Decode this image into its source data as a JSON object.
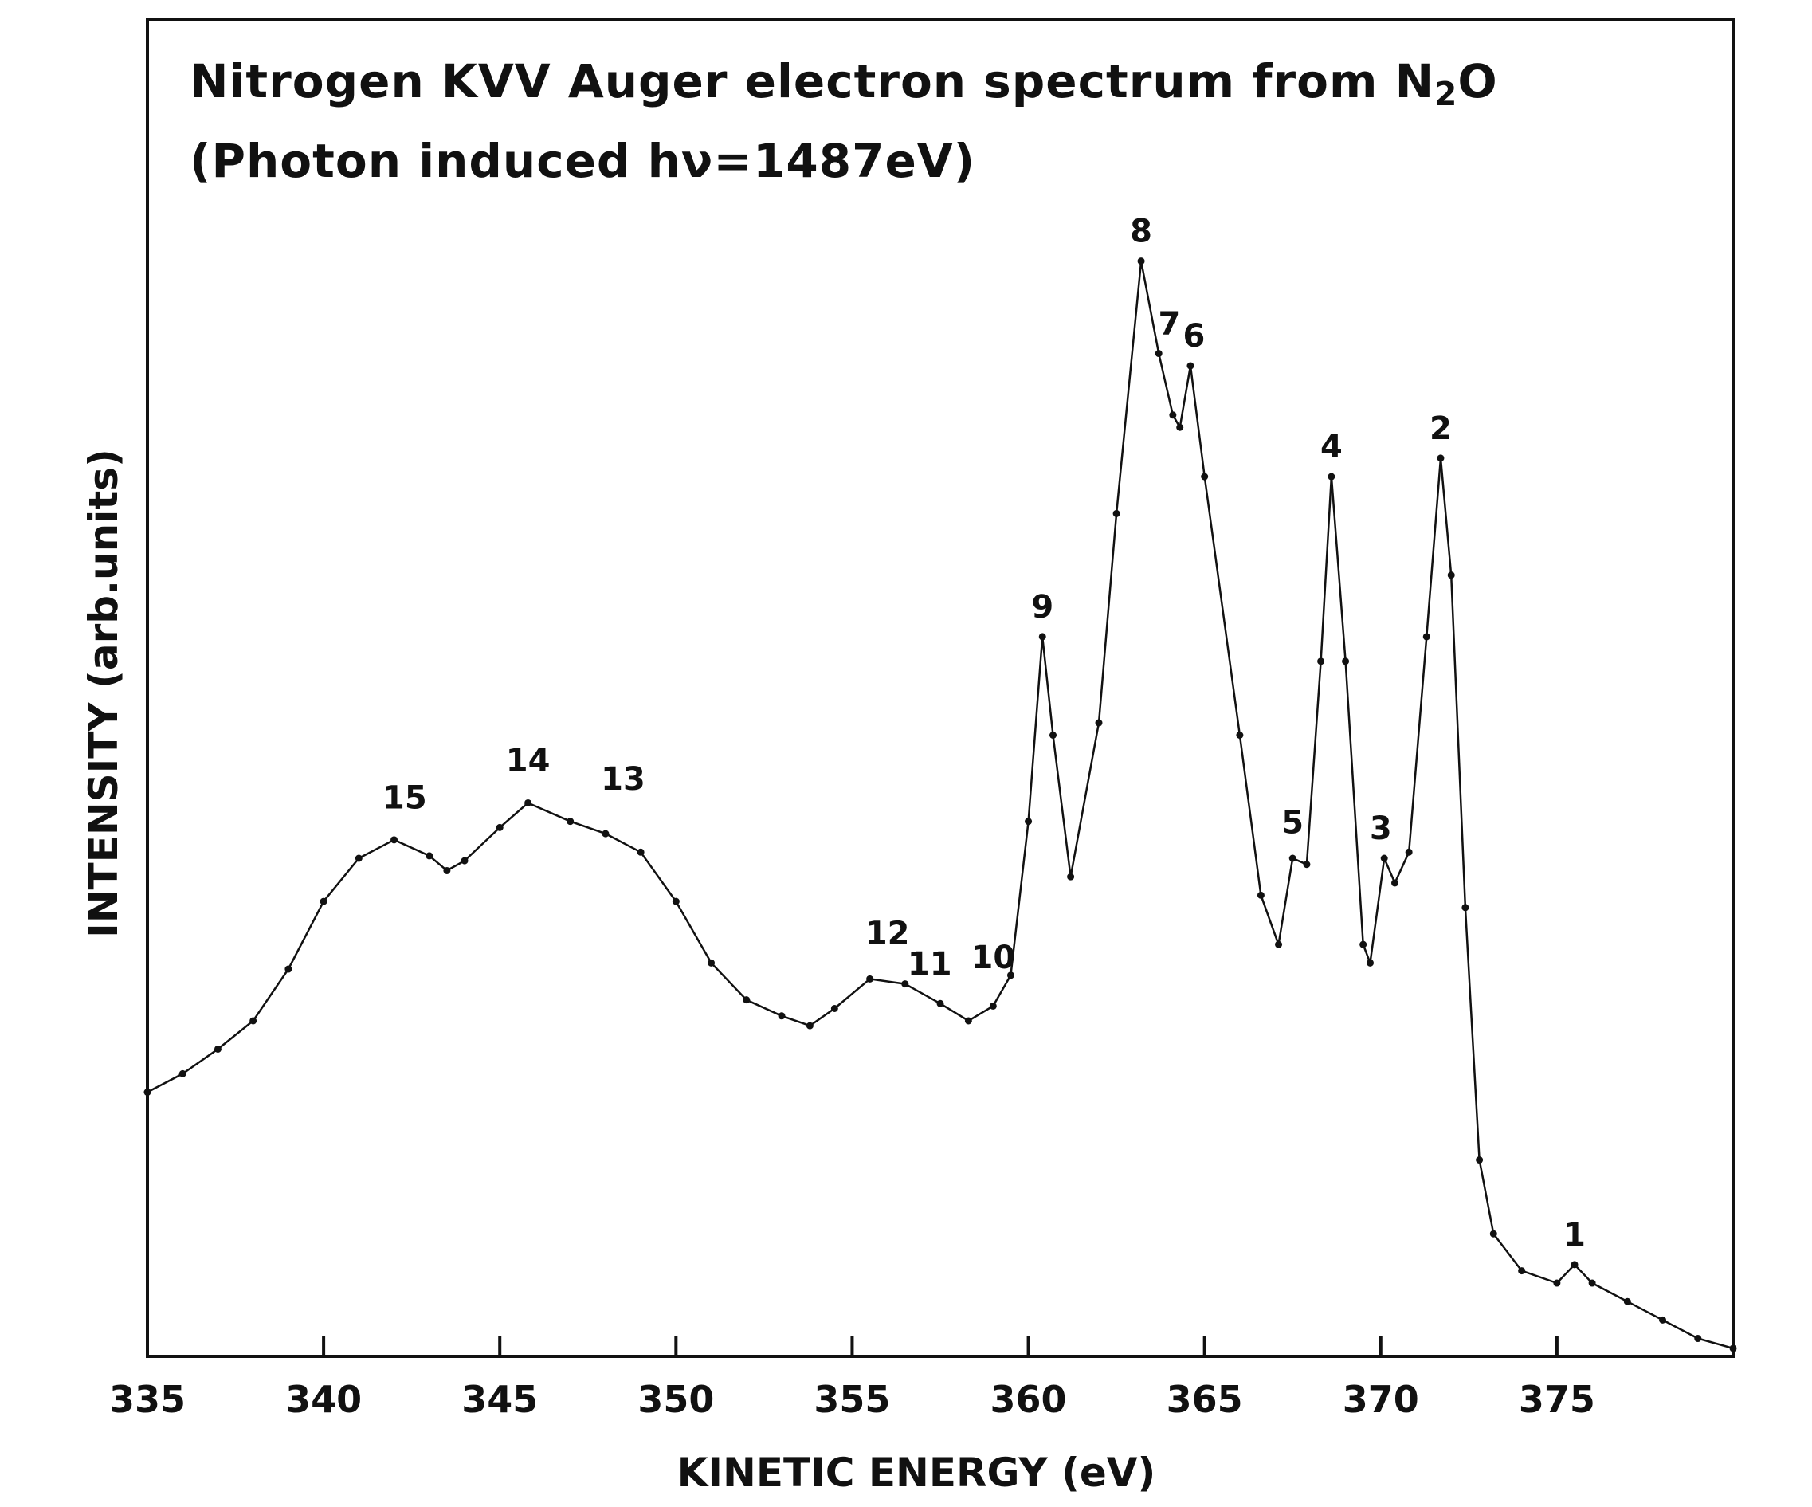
{
  "chart_data": {
    "type": "scatter",
    "title_line1": "Nitrogen KVV Auger electron spectrum from N",
    "title_line1_subscript": "2",
    "title_line1_end": "O",
    "title_line2": "(Photon induced hν=1487eV)",
    "xlabel": "KINETIC ENERGY (eV)",
    "ylabel": "INTENSITY (arb.units)",
    "xlim": [
      335,
      380
    ],
    "ylim": [
      0,
      100
    ],
    "x_ticks": [
      335,
      340,
      345,
      350,
      355,
      360,
      365,
      370,
      375
    ],
    "grid": false,
    "legend": "none",
    "colors": {
      "axes": "#111111",
      "data": "#111111",
      "background": "#ffffff"
    },
    "series": [
      {
        "values": [
          [
            335.0,
            21.0
          ],
          [
            336.0,
            22.5
          ],
          [
            337.0,
            24.5
          ],
          [
            338.0,
            26.8
          ],
          [
            339.0,
            31.0
          ],
          [
            340.0,
            36.5
          ],
          [
            341.0,
            40.0
          ],
          [
            342.0,
            41.5
          ],
          [
            343.0,
            40.2
          ],
          [
            343.5,
            39.0
          ],
          [
            344.0,
            39.8
          ],
          [
            345.0,
            42.5
          ],
          [
            345.8,
            44.5
          ],
          [
            347.0,
            43.0
          ],
          [
            348.0,
            42.0
          ],
          [
            349.0,
            40.5
          ],
          [
            350.0,
            36.5
          ],
          [
            351.0,
            31.5
          ],
          [
            352.0,
            28.5
          ],
          [
            353.0,
            27.2
          ],
          [
            353.8,
            26.4
          ],
          [
            354.5,
            27.8
          ],
          [
            355.5,
            30.2
          ],
          [
            356.5,
            29.8
          ],
          [
            357.5,
            28.2
          ],
          [
            358.3,
            26.8
          ],
          [
            359.0,
            28.0
          ],
          [
            359.5,
            30.5
          ],
          [
            360.0,
            43.0
          ],
          [
            360.4,
            58.0
          ],
          [
            360.7,
            50.0
          ],
          [
            361.2,
            38.5
          ],
          [
            362.0,
            51.0
          ],
          [
            362.5,
            68.0
          ],
          [
            363.2,
            88.5
          ],
          [
            363.7,
            81.0
          ],
          [
            364.1,
            76.0
          ],
          [
            364.3,
            75.0
          ],
          [
            364.6,
            80.0
          ],
          [
            365.0,
            71.0
          ],
          [
            366.0,
            50.0
          ],
          [
            366.6,
            37.0
          ],
          [
            367.1,
            33.0
          ],
          [
            367.5,
            40.0
          ],
          [
            367.9,
            39.5
          ],
          [
            368.3,
            56.0
          ],
          [
            368.6,
            71.0
          ],
          [
            369.0,
            56.0
          ],
          [
            369.5,
            33.0
          ],
          [
            369.7,
            31.5
          ],
          [
            370.1,
            40.0
          ],
          [
            370.4,
            38.0
          ],
          [
            370.8,
            40.5
          ],
          [
            371.3,
            58.0
          ],
          [
            371.7,
            72.5
          ],
          [
            372.0,
            63.0
          ],
          [
            372.4,
            36.0
          ],
          [
            372.8,
            15.5
          ],
          [
            373.2,
            9.5
          ],
          [
            374.0,
            6.5
          ],
          [
            375.0,
            5.5
          ],
          [
            375.5,
            7.0
          ],
          [
            376.0,
            5.5
          ],
          [
            377.0,
            4.0
          ],
          [
            378.0,
            2.5
          ],
          [
            379.0,
            1.0
          ],
          [
            380.0,
            0.2
          ]
        ]
      }
    ],
    "annotations": [
      {
        "text": "1",
        "x": 375.5,
        "y": 7.0
      },
      {
        "text": "2",
        "x": 371.7,
        "y": 72.5
      },
      {
        "text": "3",
        "x": 370.0,
        "y": 40.0
      },
      {
        "text": "4",
        "x": 368.6,
        "y": 71.0
      },
      {
        "text": "5",
        "x": 367.5,
        "y": 40.5
      },
      {
        "text": "6",
        "x": 364.7,
        "y": 80.0
      },
      {
        "text": "7",
        "x": 364.0,
        "y": 81.0
      },
      {
        "text": "8",
        "x": 363.2,
        "y": 88.5
      },
      {
        "text": "9",
        "x": 360.4,
        "y": 58.0
      },
      {
        "text": "10",
        "x": 359.0,
        "y": 29.5
      },
      {
        "text": "11",
        "x": 357.2,
        "y": 29.0
      },
      {
        "text": "12",
        "x": 356.0,
        "y": 31.5
      },
      {
        "text": "13",
        "x": 348.5,
        "y": 44.0
      },
      {
        "text": "14",
        "x": 345.8,
        "y": 45.5
      },
      {
        "text": "15",
        "x": 342.3,
        "y": 42.5
      }
    ]
  }
}
